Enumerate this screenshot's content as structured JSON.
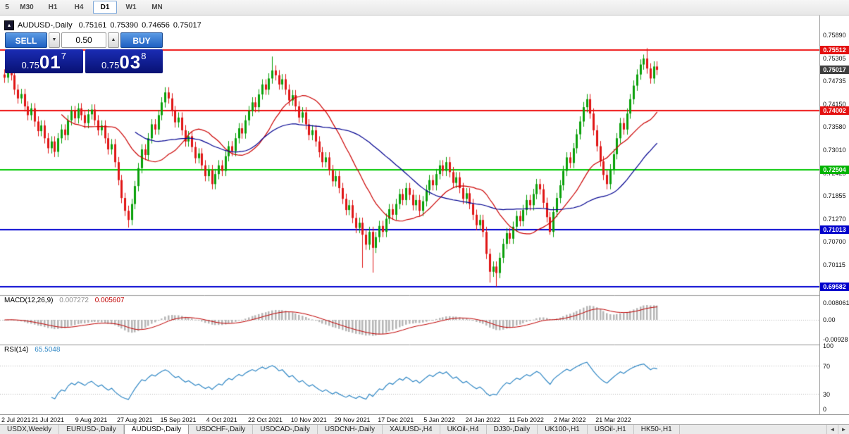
{
  "toolbar": {
    "timeframes": [
      "5",
      "M30",
      "H1",
      "H4",
      "D1",
      "W1",
      "MN"
    ],
    "active": "D1"
  },
  "icons": {
    "volume_down": "▼",
    "volume_up": "▲",
    "scroll_left": "◄",
    "scroll_right": "►",
    "chart_flag": "▴"
  },
  "trade_panel": {
    "sell_label": "SELL",
    "buy_label": "BUY",
    "volume": "0.50",
    "sell_price": {
      "base": "0.75",
      "pips": "01",
      "pipette": "7"
    },
    "buy_price": {
      "base": "0.75",
      "pips": "03",
      "pipette": "8"
    }
  },
  "tab_bar": {
    "tabs": [
      "USDX,Weekly",
      "EURUSD-,Daily",
      "AUDUSD-,Daily",
      "USDCHF-,Daily",
      "USDCAD-,Daily",
      "USDCNH-,Daily",
      "XAUUSD-,H4",
      "UKOil-,H4",
      "DJ30-,Daily",
      "UK100-,H1",
      "USOil-,H1",
      "HK50-,H1"
    ],
    "active": "AUDUSD-,Daily"
  },
  "chart_data": {
    "type": "candlestick",
    "title": {
      "symbol": "AUDUSD-,Daily",
      "open": "0.75161",
      "high": "0.75390",
      "low": "0.74656",
      "close": "0.75017"
    },
    "y_range": [
      0.6938,
      0.7638
    ],
    "y_axis": {
      "ticks": [
        "0.75890",
        "0.75305",
        "0.74735",
        "0.74150",
        "0.73580",
        "0.73010",
        "0.72425",
        "0.71855",
        "0.71270",
        "0.70700",
        "0.70115"
      ],
      "badges": [
        {
          "label": "0.75512",
          "price": 0.75512,
          "bg": "#e41010",
          "current": false
        },
        {
          "label": "0.75017",
          "price": 0.75017,
          "bg": "#3f3f3f",
          "current": true
        },
        {
          "label": "0.74002",
          "price": 0.74002,
          "bg": "#e41010",
          "current": false
        },
        {
          "label": "0.72504",
          "price": 0.72504,
          "bg": "#00b400",
          "current": false
        },
        {
          "label": "0.71013",
          "price": 0.71013,
          "bg": "#0000cc",
          "current": false
        },
        {
          "label": "0.69582",
          "price": 0.69582,
          "bg": "#0000cc",
          "current": false
        }
      ]
    },
    "x_axis": {
      "labels": [
        "2 Jul 2021",
        "21 Jul 2021",
        "9 Aug 2021",
        "27 Aug 2021",
        "15 Sep 2021",
        "4 Oct 2021",
        "22 Oct 2021",
        "10 Nov 2021",
        "29 Nov 2021",
        "17 Dec 2021",
        "5 Jan 2022",
        "24 Jan 2022",
        "11 Feb 2022",
        "2 Mar 2022",
        "21 Mar 2022"
      ],
      "indices": [
        0,
        13,
        26,
        39,
        52,
        65,
        78,
        91,
        104,
        117,
        130,
        143,
        156,
        169,
        182
      ]
    },
    "levels": [
      {
        "price": 0.75512,
        "color": "#ee1111"
      },
      {
        "price": 0.74002,
        "color": "#ee1111"
      },
      {
        "price": 0.72504,
        "color": "#00c800"
      },
      {
        "price": 0.71013,
        "color": "#0000d0"
      },
      {
        "price": 0.69582,
        "color": "#0000d0"
      }
    ],
    "colors": {
      "up": "#0aa00a",
      "down": "#e01616",
      "macd_hist": "#b6b6b6",
      "macd_signal": "#c00000",
      "rsi_line": "#2f87c5"
    },
    "moving_averages": [
      {
        "period": 18,
        "color": "#cc0000"
      },
      {
        "period": 40,
        "color": "#000090"
      }
    ],
    "indicators": {
      "macd": {
        "name": "MACD(12,26,9)",
        "main": "0.007272",
        "signal": "0.005607",
        "axis_labels": [
          "0.008061",
          "0.00",
          "-0.00928"
        ]
      },
      "rsi": {
        "name": "RSI(14)",
        "value": "65.5048",
        "axis_labels": [
          "100",
          "70",
          "30",
          "0"
        ]
      }
    },
    "closes": [
      0.7482,
      0.75,
      0.7488,
      0.7452,
      0.743,
      0.7441,
      0.741,
      0.7388,
      0.7405,
      0.7372,
      0.7348,
      0.7362,
      0.733,
      0.7305,
      0.7322,
      0.7296,
      0.733,
      0.7352,
      0.7338,
      0.7375,
      0.7398,
      0.738,
      0.7405,
      0.7388,
      0.7368,
      0.739,
      0.7402,
      0.7375,
      0.735,
      0.7362,
      0.733,
      0.7302,
      0.7315,
      0.727,
      0.7225,
      0.718,
      0.7148,
      0.7125,
      0.7165,
      0.721,
      0.7255,
      0.7302,
      0.7288,
      0.733,
      0.7365,
      0.7352,
      0.7388,
      0.742,
      0.7445,
      0.743,
      0.7398,
      0.737,
      0.7382,
      0.735,
      0.7322,
      0.7335,
      0.7308,
      0.728,
      0.7292,
      0.7262,
      0.7235,
      0.725,
      0.7215,
      0.724,
      0.7262,
      0.7248,
      0.7285,
      0.731,
      0.7298,
      0.733,
      0.7355,
      0.7342,
      0.7375,
      0.7398,
      0.742,
      0.7408,
      0.744,
      0.7465,
      0.7452,
      0.748,
      0.75,
      0.7488,
      0.7465,
      0.7478,
      0.7452,
      0.7425,
      0.7438,
      0.741,
      0.7382,
      0.7395,
      0.7365,
      0.7338,
      0.735,
      0.7322,
      0.7295,
      0.727,
      0.7282,
      0.725,
      0.7222,
      0.7235,
      0.7205,
      0.7178,
      0.715,
      0.7162,
      0.713,
      0.7105,
      0.7118,
      0.7088,
      0.7063,
      0.7095,
      0.7055,
      0.7082,
      0.711,
      0.7095,
      0.7128,
      0.7152,
      0.7138,
      0.7165,
      0.719,
      0.7175,
      0.7205,
      0.7188,
      0.7162,
      0.7175,
      0.7148,
      0.7172,
      0.72,
      0.7225,
      0.7212,
      0.724,
      0.7262,
      0.7248,
      0.727,
      0.7245,
      0.7218,
      0.7232,
      0.7205,
      0.7178,
      0.7192,
      0.7165,
      0.7138,
      0.7112,
      0.7125,
      0.7095,
      0.704,
      0.6995,
      0.7008,
      0.6992,
      0.703,
      0.7065,
      0.7092,
      0.7078,
      0.7108,
      0.7135,
      0.7122,
      0.715,
      0.7175,
      0.7162,
      0.719,
      0.7215,
      0.7202,
      0.7168,
      0.7132,
      0.7095,
      0.7145,
      0.718,
      0.7212,
      0.7248,
      0.7282,
      0.7268,
      0.7305,
      0.734,
      0.7372,
      0.7408,
      0.7428,
      0.7392,
      0.735,
      0.731,
      0.7272,
      0.7238,
      0.7215,
      0.7252,
      0.729,
      0.733,
      0.7368,
      0.7352,
      0.7392,
      0.7428,
      0.7462,
      0.749,
      0.7515,
      0.753,
      0.7505,
      0.748,
      0.751,
      0.75017
    ],
    "wick_overrides": [
      {
        "i": 37,
        "low": 0.7106
      },
      {
        "i": 80,
        "high": 0.7535
      },
      {
        "i": 107,
        "low": 0.7005
      },
      {
        "i": 110,
        "low": 0.6993
      },
      {
        "i": 145,
        "low": 0.6968
      },
      {
        "i": 147,
        "low": 0.6958
      },
      {
        "i": 163,
        "low": 0.7088
      },
      {
        "i": 174,
        "high": 0.7441
      },
      {
        "i": 191,
        "high": 0.754
      },
      {
        "i": 192,
        "high": 0.7556
      }
    ]
  }
}
